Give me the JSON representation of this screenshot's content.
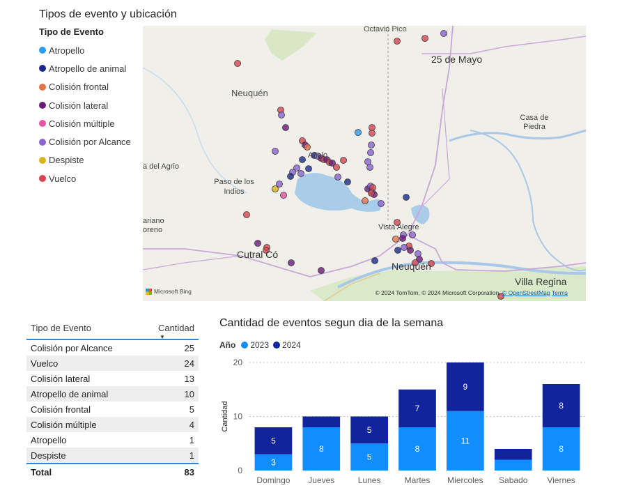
{
  "map_visual": {
    "title": "Tipos de evento y ubicación",
    "legend_title": "Tipo de Evento",
    "legend": [
      {
        "label": "Atropello",
        "color": "#2c9bf0"
      },
      {
        "label": "Atropello de animal",
        "color": "#1a2a8c"
      },
      {
        "label": "Colisión frontal",
        "color": "#e8744a"
      },
      {
        "label": "Colisión lateral",
        "color": "#6b1a7a"
      },
      {
        "label": "Colisión múltiple",
        "color": "#e455a5"
      },
      {
        "label": "Colisión por Alcance",
        "color": "#8a63d2"
      },
      {
        "label": "Despiste",
        "color": "#d9b317"
      },
      {
        "label": "Vuelco",
        "color": "#d64550"
      }
    ],
    "place_labels": {
      "octavio_pico": "Octavio Pico",
      "veinticinco_de_mayo": "25 de Mayo",
      "neuquen_province": "Neuquén",
      "casa_de_piedra": "Casa de Piedra",
      "anelo": "Añelo",
      "agrio": "a del Agrio",
      "paso_de_los_indios": "Paso de los Indios",
      "mariano_moreno": "ariano oreno",
      "vista_alegre": "Vista Alegre",
      "cutral_co": "Cutral Có",
      "neuquen_city": "Neuquén",
      "villa_regina": "Villa Regina"
    },
    "attribution_text": "© 2024 TomTom, © 2024 Microsoft Corporation,",
    "attribution_osm": "© OpenStreetMap",
    "attribution_terms": "Terms",
    "bing_label": "Microsoft Bing"
  },
  "table": {
    "col_tipo": "Tipo de Evento",
    "col_cantidad": "Cantidad",
    "rows": [
      {
        "tipo": "Colisión por Alcance",
        "cantidad": "25"
      },
      {
        "tipo": "Vuelco",
        "cantidad": "24"
      },
      {
        "tipo": "Colisión lateral",
        "cantidad": "13"
      },
      {
        "tipo": "Atropello de animal",
        "cantidad": "10"
      },
      {
        "tipo": "Colisión frontal",
        "cantidad": "5"
      },
      {
        "tipo": "Colisión múltiple",
        "cantidad": "4"
      },
      {
        "tipo": "Atropello",
        "cantidad": "1"
      },
      {
        "tipo": "Despiste",
        "cantidad": "1"
      }
    ],
    "total_label": "Total",
    "total_value": "83"
  },
  "bar_visual": {
    "title": "Cantidad de eventos segun dia de la semana",
    "legend_title": "Año"
  },
  "chart_data": {
    "type": "bar",
    "stacked": true,
    "title": "Cantidad de eventos segun dia de la semana",
    "xlabel": "",
    "ylabel": "Cantidad",
    "categories": [
      "Domingo",
      "Jueves",
      "Lunes",
      "Martes",
      "Miercoles",
      "Sabado",
      "Viernes"
    ],
    "series": [
      {
        "name": "2023",
        "color": "#118dff",
        "values": [
          3,
          8,
          5,
          8,
          11,
          2,
          8
        ],
        "labels": [
          "3",
          "8",
          "5",
          "8",
          "11",
          "",
          "8"
        ]
      },
      {
        "name": "2024",
        "color": "#12239e",
        "values": [
          5,
          2,
          5,
          7,
          9,
          2,
          8
        ],
        "labels": [
          "5",
          "",
          "5",
          "7",
          "9",
          "",
          "8"
        ]
      }
    ],
    "ylim": [
      0,
      20
    ],
    "yticks": [
      0,
      10,
      20
    ],
    "grid": true,
    "legend_position": "top-left"
  }
}
